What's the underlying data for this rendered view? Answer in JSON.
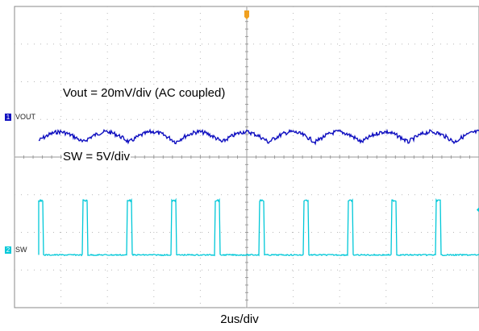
{
  "chart_data": {
    "type": "line",
    "annotations": {
      "vout": "Vout = 20mV/div (AC coupled)",
      "sw": "SW = 5V/div"
    },
    "xlabel": "2us/div",
    "grid": true,
    "divisions": {
      "x": 10,
      "y": 8
    },
    "trigger_marker": "T",
    "channels": [
      {
        "id": "1",
        "label": "VOUT",
        "color": "#1010c0",
        "type": "ripple",
        "ripple_cycles": 10,
        "offset_div": 3.5
      },
      {
        "id": "2",
        "label": "SW",
        "color": "#00c8d8",
        "type": "pulse",
        "pulse_count": 11,
        "offset_div": 6.6,
        "amplitude_div": 1.9
      }
    ]
  }
}
